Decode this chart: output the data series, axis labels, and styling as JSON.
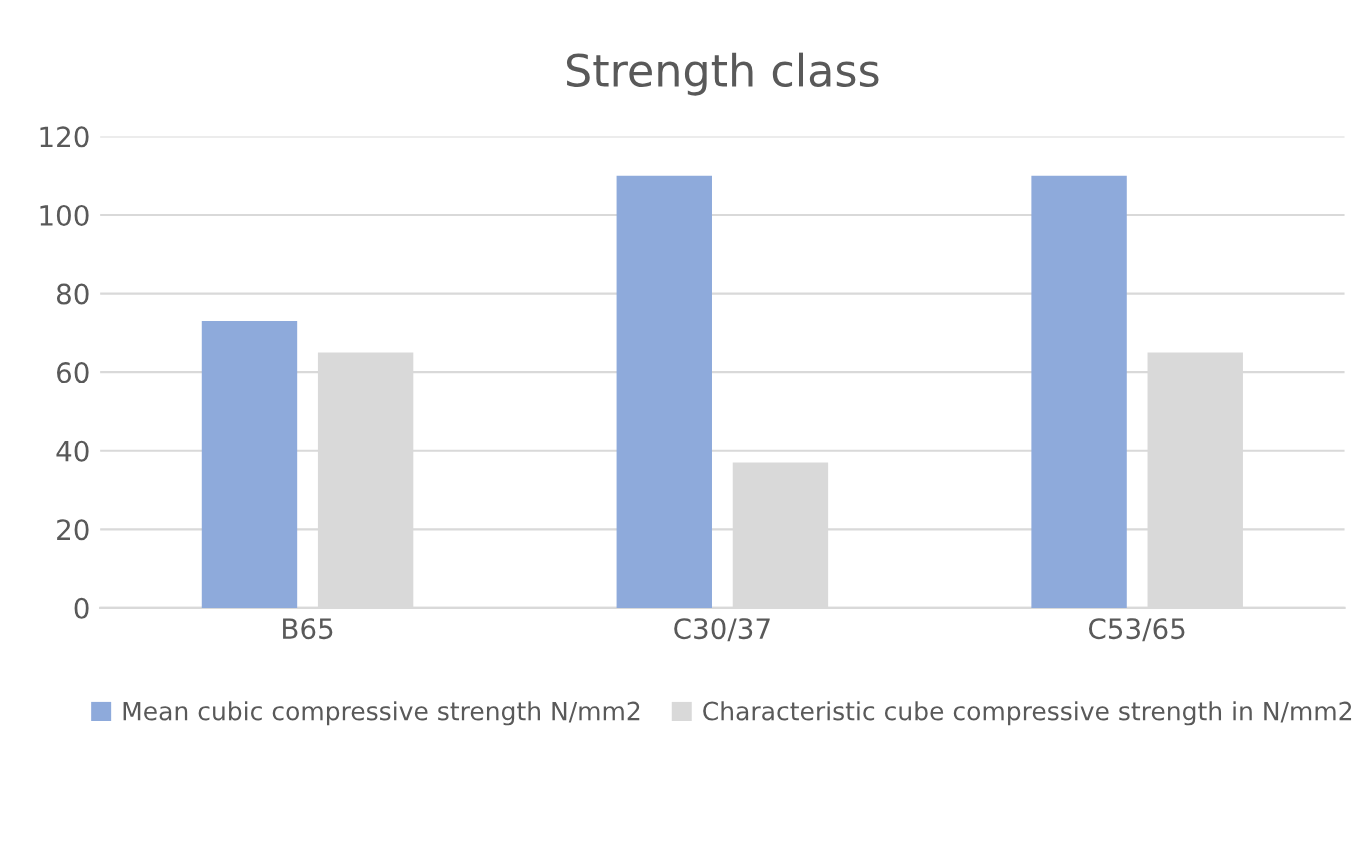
{
  "chart_data": {
    "type": "bar",
    "title": "Strength class",
    "categories": [
      "B65",
      "C30/37",
      "C53/65"
    ],
    "series": [
      {
        "name": "Mean cubic compressive strength N/mm2",
        "color": "#8eaadb",
        "values": [
          73,
          110,
          110
        ]
      },
      {
        "name": "Characteristic cube compressive strength in N/mm2",
        "color": "#d9d9d9",
        "values": [
          65,
          37,
          65
        ]
      }
    ],
    "ylim": [
      0,
      120
    ],
    "yticks": [
      0,
      20,
      40,
      60,
      80,
      100,
      120
    ],
    "grid": "y",
    "legend": "bottom"
  }
}
